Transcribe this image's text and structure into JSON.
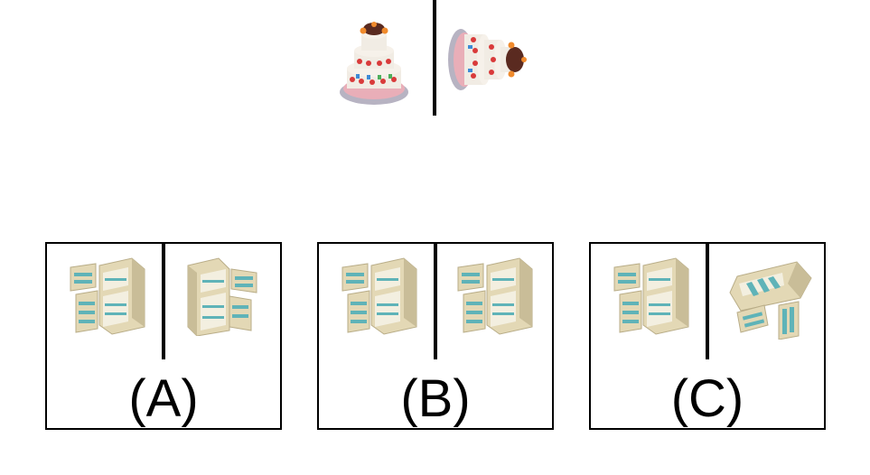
{
  "prompt": {
    "items": [
      "cake",
      "cake-rotated"
    ]
  },
  "options": [
    {
      "label": "(A)",
      "items": [
        "open-fridge",
        "open-fridge-mirrored"
      ]
    },
    {
      "label": "(B)",
      "items": [
        "open-fridge",
        "open-fridge"
      ]
    },
    {
      "label": "(C)",
      "items": [
        "open-fridge",
        "open-fridge-tilted"
      ]
    }
  ],
  "colors": {
    "border": "#000000",
    "fridge_body": "#e3d8b5",
    "fridge_shadow": "#b9ad88",
    "fridge_shelf": "#5fb3b8",
    "cake_frosting": "#f1ece4",
    "cake_accent": "#d93a3a",
    "cake_plate": "#b7b3c2",
    "cake_topper": "#5a2a20"
  }
}
